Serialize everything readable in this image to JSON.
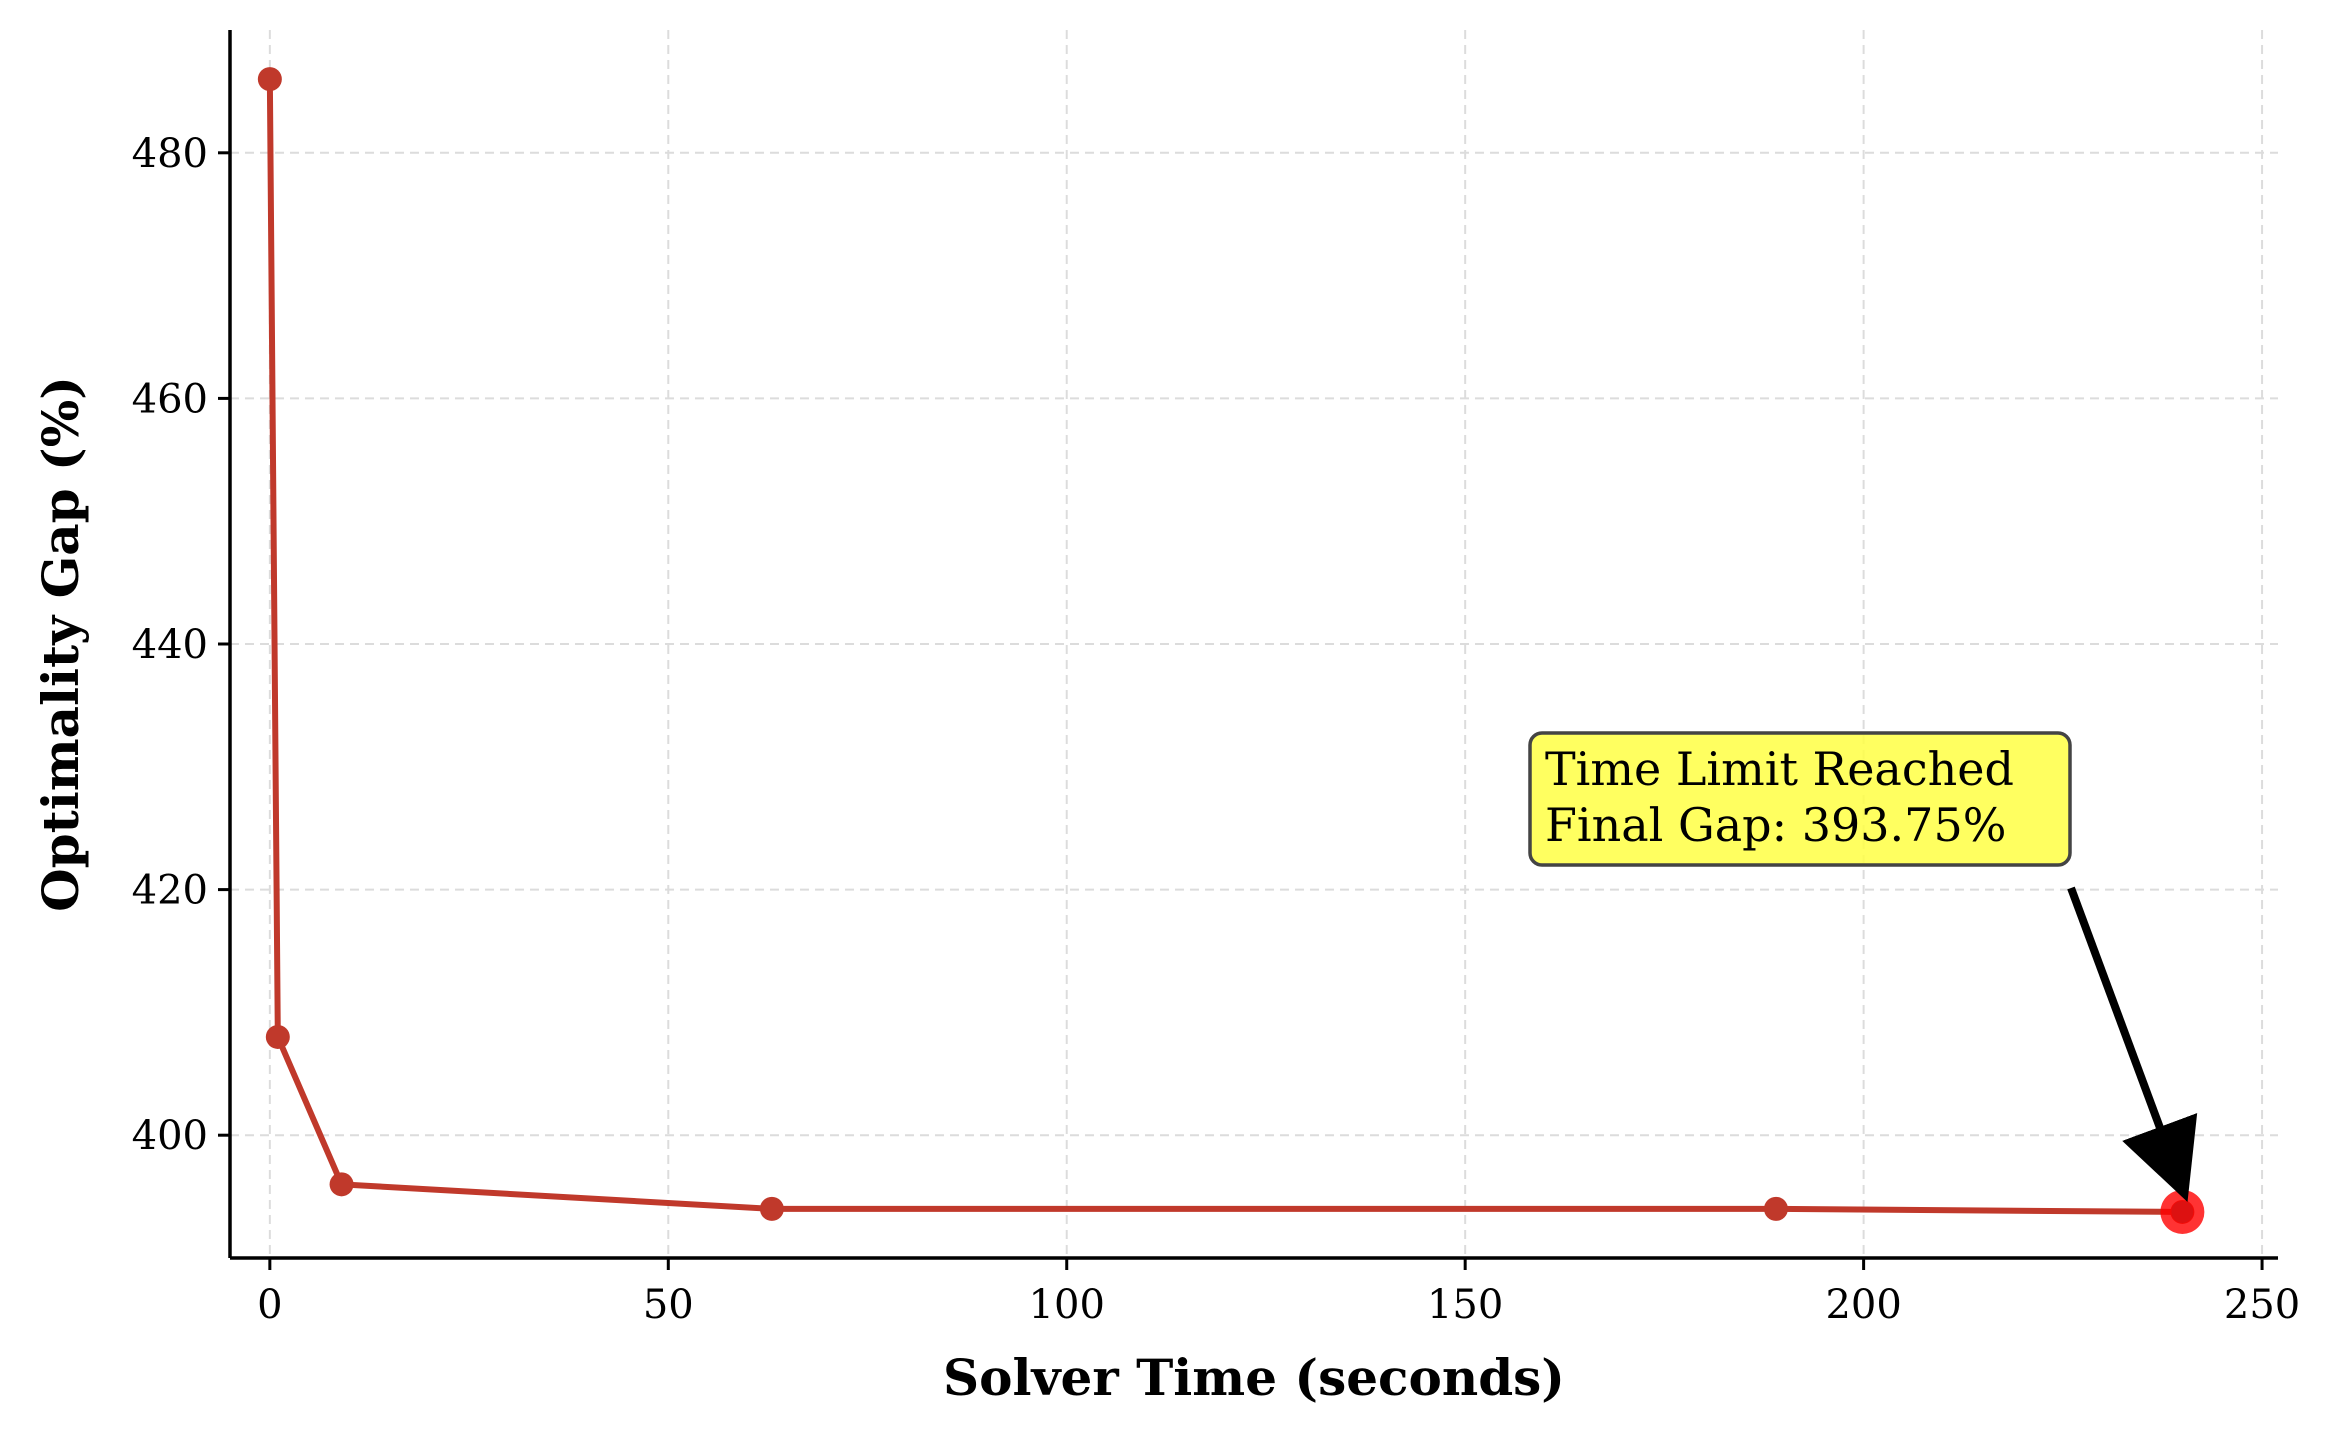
{
  "chart_data": {
    "type": "line",
    "title": "",
    "xlabel": "Solver Time (seconds)",
    "ylabel": "Optimality Gap (%)",
    "xlim": [
      -5,
      252
    ],
    "ylim": [
      390,
      490
    ],
    "xticks": [
      0,
      50,
      100,
      150,
      200,
      250
    ],
    "yticks": [
      400,
      420,
      440,
      460,
      480
    ],
    "grid": true,
    "series": [
      {
        "x": [
          0,
          1,
          9,
          63,
          189,
          240
        ],
        "y": [
          486,
          408,
          396,
          394,
          394,
          393.75
        ],
        "color": "#c0392b"
      }
    ],
    "highlight_point": {
      "x": 240,
      "y": 393.75,
      "color": "#ff0000"
    },
    "annotation": {
      "lines": [
        "Time Limit Reached",
        "Final Gap: 393.75%"
      ],
      "box_color": "#ffff44",
      "target": {
        "x": 240,
        "y": 393.75
      }
    }
  }
}
